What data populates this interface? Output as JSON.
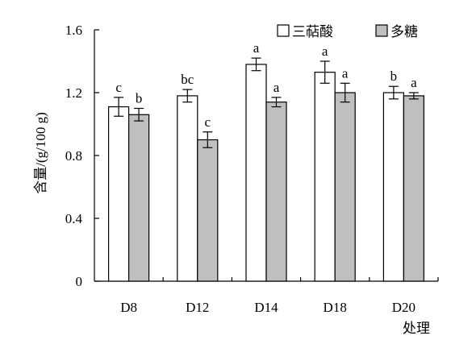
{
  "chart_data": {
    "type": "bar",
    "categories": [
      "D8",
      "D12",
      "D14",
      "D18",
      "D20"
    ],
    "series": [
      {
        "name": "三萜酸",
        "color": "#ffffff",
        "values": [
          1.11,
          1.18,
          1.38,
          1.33,
          1.2
        ],
        "errors": [
          0.06,
          0.04,
          0.04,
          0.07,
          0.04
        ],
        "letters": [
          "c",
          "bc",
          "a",
          "a",
          "b"
        ]
      },
      {
        "name": "多糖",
        "color": "#bfbfbf",
        "values": [
          1.06,
          0.9,
          1.14,
          1.2,
          1.18
        ],
        "errors": [
          0.04,
          0.05,
          0.03,
          0.06,
          0.02
        ],
        "letters": [
          "b",
          "c",
          "a",
          "a",
          "a"
        ]
      }
    ],
    "xlabel": "处理",
    "ylabel": "含量/(g/100 g)",
    "ylim": [
      0,
      1.6
    ],
    "yticks": [
      "0",
      "0.4",
      "0.8",
      "1.2",
      "1.6"
    ],
    "grid": false,
    "legend_position": "top-right"
  }
}
